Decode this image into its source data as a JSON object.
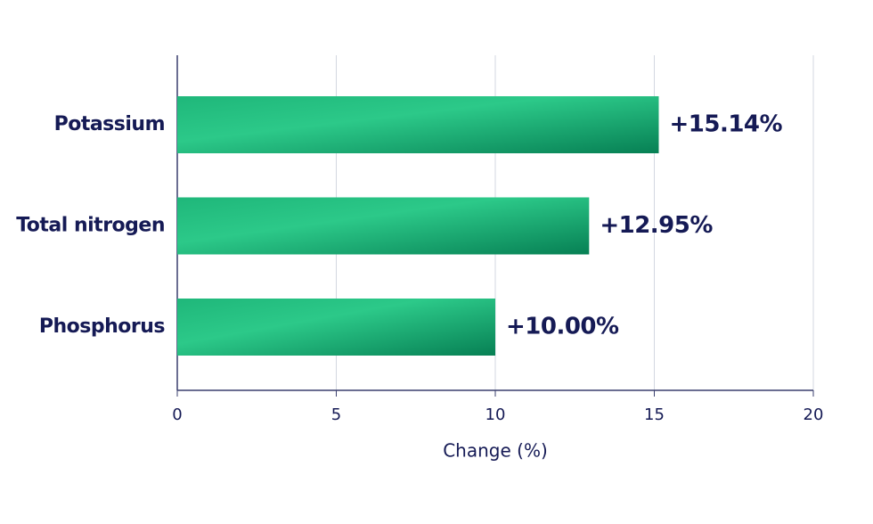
{
  "chart_data": {
    "type": "bar",
    "orientation": "horizontal",
    "x_label": "Change (%)",
    "categories": [
      "Potassium",
      "Total nitrogen",
      "Phosphorus"
    ],
    "values": [
      15.14,
      12.95,
      10.0
    ],
    "value_labels": [
      "+15.14%",
      "+12.95%",
      "+10.00%"
    ],
    "color": "#2cc989",
    "xlim": [
      0,
      20
    ],
    "xticks": [
      0,
      5,
      10,
      15,
      20
    ],
    "grid": true
  }
}
